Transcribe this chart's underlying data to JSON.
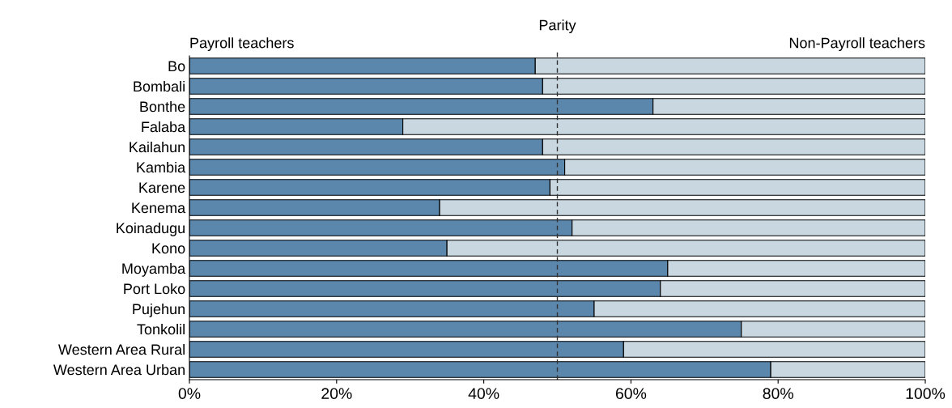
{
  "chart_data": {
    "type": "bar",
    "orientation": "horizontal",
    "stacked": true,
    "categories": [
      "Bo",
      "Bombali",
      "Bonthe",
      "Falaba",
      "Kailahun",
      "Kambia",
      "Karene",
      "Kenema",
      "Koinadugu",
      "Kono",
      "Moyamba",
      "Port Loko",
      "Pujehun",
      "Tonkolil",
      "Western Area Rural",
      "Western Area Urban"
    ],
    "series": [
      {
        "name": "Payroll teachers",
        "color": "#5b87ad",
        "values": [
          47,
          48,
          63,
          29,
          48,
          51,
          49,
          34,
          52,
          35,
          65,
          64,
          55,
          75,
          59,
          79
        ]
      },
      {
        "name": "Non-Payroll teachers",
        "color": "#c9d7e1",
        "values": [
          53,
          52,
          37,
          71,
          52,
          49,
          51,
          66,
          48,
          65,
          35,
          36,
          45,
          25,
          41,
          21
        ]
      }
    ],
    "xlim": [
      0,
      100
    ],
    "xticks": [
      {
        "value": 0,
        "label": "0%"
      },
      {
        "value": 20,
        "label": "20%"
      },
      {
        "value": 40,
        "label": "40%"
      },
      {
        "value": 60,
        "label": "60%"
      },
      {
        "value": 80,
        "label": "80%"
      },
      {
        "value": 100,
        "label": "100%"
      }
    ],
    "ref_lines": [
      {
        "axis": "x",
        "value": 50,
        "label": "Parity",
        "line_style": "dashed",
        "color": "#333333"
      }
    ],
    "grid": false,
    "legend": false
  }
}
